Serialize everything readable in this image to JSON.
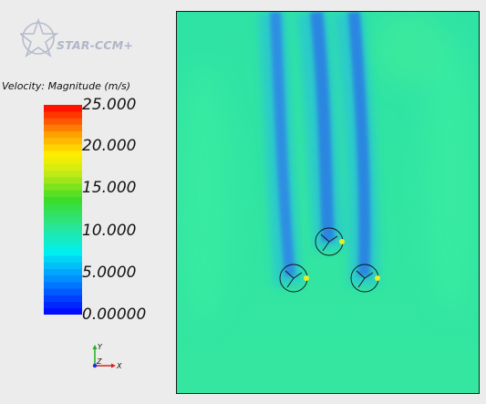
{
  "logo": {
    "text": "STAR-CCM+",
    "icon": "star-ccm-logo-icon"
  },
  "legend": {
    "title": "Velocity: Magnitude (m/s)",
    "tick_labels": [
      "25.000",
      "20.000",
      "15.000",
      "10.000",
      "5.0000",
      "0.00000"
    ],
    "min": 0.0,
    "max": 25.0
  },
  "axes_triad": {
    "y_label": "Y",
    "z_label": "Z",
    "x_label": "X"
  },
  "colors": {
    "background": "#ececec",
    "field_free_stream": "#2fe0a6",
    "wake": "#2a82e0",
    "colormap_low": "#0000ff",
    "colormap_high": "#ff0000"
  },
  "scene": {
    "turbines": [
      {
        "name": "turbine-upper-middle"
      },
      {
        "name": "turbine-lower-left"
      },
      {
        "name": "turbine-lower-right"
      }
    ]
  }
}
